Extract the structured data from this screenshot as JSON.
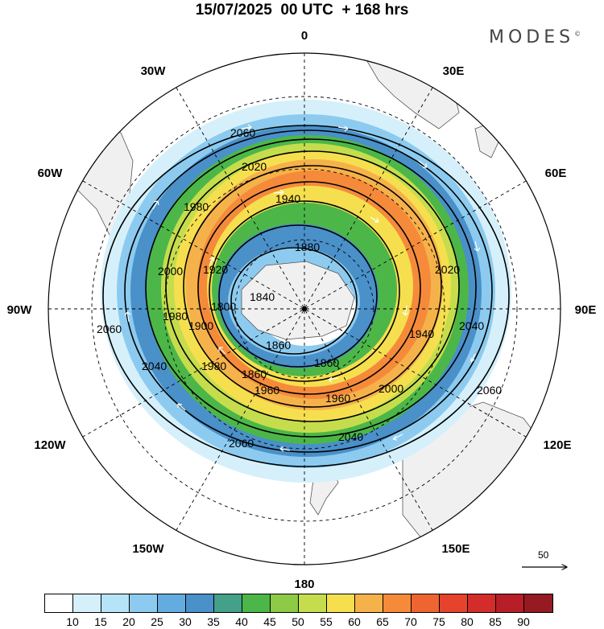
{
  "title": "15/07/2025  00 UTC  + 168 hrs",
  "brand": "MODES",
  "brand_mark": "©",
  "longitude_labels": [
    {
      "id": "lon-0",
      "text": "0"
    },
    {
      "id": "lon-30e",
      "text": "30E"
    },
    {
      "id": "lon-60e",
      "text": "60E"
    },
    {
      "id": "lon-90e",
      "text": "90E"
    },
    {
      "id": "lon-120e",
      "text": "120E"
    },
    {
      "id": "lon-150e",
      "text": "150E"
    },
    {
      "id": "lon-180",
      "text": "180"
    },
    {
      "id": "lon-150w",
      "text": "150W"
    },
    {
      "id": "lon-120w",
      "text": "120W"
    },
    {
      "id": "lon-90w",
      "text": "90W"
    },
    {
      "id": "lon-60w",
      "text": "60W"
    },
    {
      "id": "lon-30w",
      "text": "30W"
    }
  ],
  "contour_labels": [
    "2060",
    "2020",
    "1980",
    "1940",
    "1880",
    "1920",
    "2000",
    "1840",
    "1980",
    "1900",
    "1980",
    "1860",
    "1800",
    "1940",
    "2020",
    "2040",
    "2060",
    "2040",
    "2060",
    "1960",
    "1960",
    "2000",
    "1860",
    "1860",
    "2060",
    "2040"
  ],
  "vector_reference": "50",
  "colorbar": {
    "colors": [
      "#ffffff",
      "#d6f0fb",
      "#b5e3f7",
      "#8ccbef",
      "#63ace0",
      "#4a90c9",
      "#45a08a",
      "#4cb748",
      "#8dca45",
      "#c5dd4d",
      "#f6df4f",
      "#f6b24a",
      "#f58b3a",
      "#ef6532",
      "#e5432c",
      "#d42c2a",
      "#b81e27",
      "#951a22"
    ],
    "ticks": [
      "10",
      "15",
      "20",
      "25",
      "30",
      "35",
      "40",
      "45",
      "50",
      "55",
      "60",
      "65",
      "70",
      "75",
      "80",
      "85",
      "90"
    ]
  }
}
